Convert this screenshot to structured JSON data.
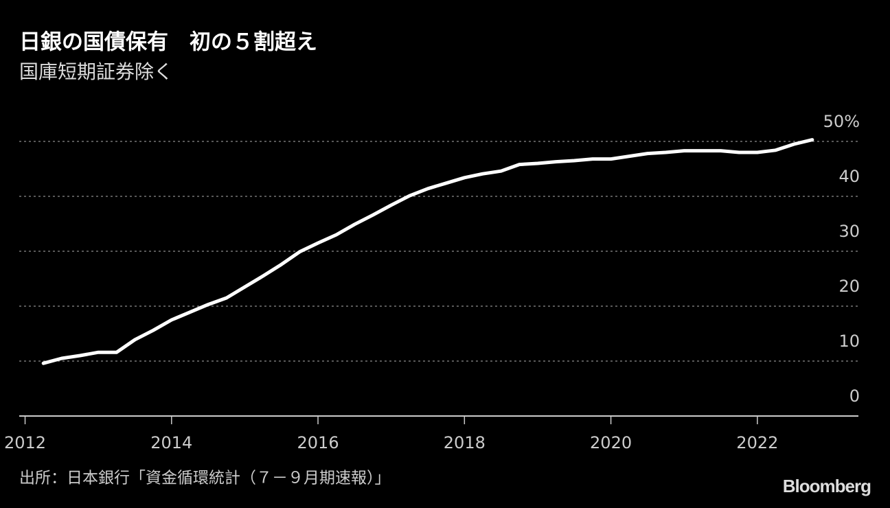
{
  "chart_data": {
    "type": "line",
    "title": "日銀の国債保有　初の５割超え",
    "subtitle": "国庫短期証券除く",
    "source": "出所：日本銀行「資金循環統計（７－９月期速報）」",
    "brand": "Bloomberg",
    "x": [
      2012.25,
      2012.5,
      2012.75,
      2013,
      2013.25,
      2013.5,
      2013.75,
      2014,
      2014.25,
      2014.5,
      2014.75,
      2015,
      2015.25,
      2015.5,
      2015.75,
      2016,
      2016.25,
      2016.5,
      2016.75,
      2017,
      2017.25,
      2017.5,
      2017.75,
      2018,
      2018.25,
      2018.5,
      2018.75,
      2019,
      2019.25,
      2019.5,
      2019.75,
      2020,
      2020.25,
      2020.5,
      2020.75,
      2021,
      2021.25,
      2021.5,
      2021.75,
      2022,
      2022.25,
      2022.5,
      2022.75
    ],
    "series": [
      {
        "color": "#ffffff",
        "values": [
          9.6,
          10.5,
          11,
          11.6,
          11.6,
          13.9,
          15.6,
          17.5,
          18.9,
          20.3,
          21.5,
          23.5,
          25.5,
          27.6,
          29.9,
          31.5,
          33,
          34.9,
          36.6,
          38.4,
          40.1,
          41.4,
          42.4,
          43.4,
          44.1,
          44.6,
          45.8,
          46,
          46.3,
          46.5,
          46.8,
          46.8,
          47.3,
          47.8,
          48,
          48.3,
          48.3,
          48.3,
          48,
          48,
          48.4,
          49.5,
          50.3
        ]
      }
    ],
    "xlim": [
      2011.92,
      2023.38
    ],
    "xticks": [
      2012,
      2014,
      2016,
      2018,
      2020,
      2022
    ],
    "ylim": [
      0,
      50
    ],
    "yticks": [
      0,
      10,
      20,
      30,
      40,
      {
        "value": 50,
        "label": "50%"
      }
    ],
    "grid": true
  }
}
